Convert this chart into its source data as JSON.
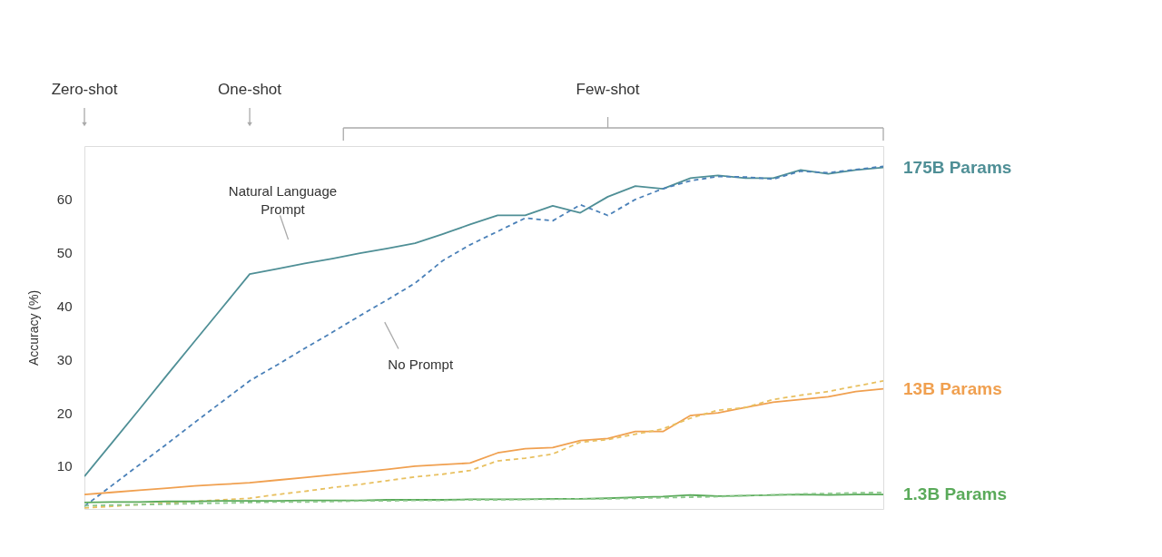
{
  "chart_data": {
    "type": "line",
    "categories": [
      null,
      null,
      null,
      null,
      null,
      null,
      null,
      null,
      null,
      null,
      null,
      null,
      null,
      null,
      null,
      null,
      null,
      null,
      null,
      null,
      null,
      null,
      null,
      null,
      null,
      null,
      null,
      null,
      null,
      null
    ],
    "series": [
      {
        "name": "175B Params",
        "color": "#4f8f96",
        "line_style": "solid",
        "values": [
          8.1,
          14.4,
          20.7,
          27.1,
          33.4,
          39.7,
          46,
          47,
          48,
          48.9,
          49.9,
          50.8,
          51.8,
          53.5,
          55.3,
          57,
          57,
          58.8,
          57.5,
          60.5,
          62.5,
          62,
          64,
          64.5,
          64,
          64,
          65.5,
          64.8,
          65.5,
          66
        ]
      },
      {
        "color": "#4a80b8",
        "line_style": "dashed",
        "values": [
          2.5,
          6.4,
          10.3,
          14.2,
          18.2,
          22.1,
          26,
          29,
          32.1,
          35.1,
          38.2,
          41.2,
          44.3,
          48.5,
          51.5,
          54,
          56.5,
          56,
          59,
          57,
          60,
          62,
          63.5,
          64.3,
          64.2,
          63.8,
          65.3,
          65,
          65.6,
          66.2
        ]
      },
      {
        "name": "13B Params",
        "color": "#f0a050",
        "line_style": "solid",
        "values": [
          4.7,
          5.1,
          5.5,
          5.9,
          6.3,
          6.6,
          6.9,
          7.4,
          7.9,
          8.4,
          8.9,
          9.4,
          10,
          10.3,
          10.6,
          12.5,
          13.3,
          13.5,
          14.8,
          15.2,
          16.5,
          16.5,
          19.5,
          20,
          21,
          22,
          22.5,
          23,
          24,
          24.5
        ]
      },
      {
        "color": "#e8c060",
        "line_style": "dashed",
        "values": [
          2.2,
          2.5,
          2.8,
          3.1,
          3.4,
          3.7,
          4,
          4.7,
          5.3,
          6,
          6.6,
          7.3,
          8,
          8.5,
          9.2,
          11,
          11.5,
          12.3,
          14.5,
          15,
          16,
          17,
          19,
          20.5,
          21,
          22.5,
          23.3,
          24,
          25,
          26
        ]
      },
      {
        "name": "1.3B Params",
        "color": "#5aaa5a",
        "line_style": "solid",
        "values": [
          3.2,
          3.3,
          3.3,
          3.4,
          3.4,
          3.5,
          3.5,
          3.5,
          3.6,
          3.6,
          3.6,
          3.7,
          3.7,
          3.7,
          3.8,
          3.8,
          3.8,
          3.9,
          3.9,
          4,
          4.2,
          4.3,
          4.6,
          4.4,
          4.5,
          4.6,
          4.7,
          4.6,
          4.7,
          4.7
        ]
      },
      {
        "color": "#8cc88c",
        "line_style": "dashed",
        "values": [
          2.6,
          2.7,
          2.8,
          2.9,
          3,
          3.1,
          3.2,
          3.3,
          3.3,
          3.4,
          3.5,
          3.5,
          3.6,
          3.6,
          3.7,
          3.7,
          3.8,
          3.8,
          3.9,
          3.9,
          4,
          4.1,
          4.2,
          4.3,
          4.5,
          4.6,
          4.8,
          4.9,
          5,
          5.1
        ]
      }
    ],
    "ylim": [
      2,
      70
    ],
    "yticks": [
      10,
      20,
      30,
      40,
      50,
      60
    ],
    "ylabel": "Accuracy (%)",
    "tick_labels": "y",
    "grid": false,
    "legend": false,
    "marker": "none",
    "annotations": [
      "Zero-shot",
      "One-shot",
      "Few-shot",
      "Natural Language Prompt",
      "No Prompt"
    ]
  }
}
